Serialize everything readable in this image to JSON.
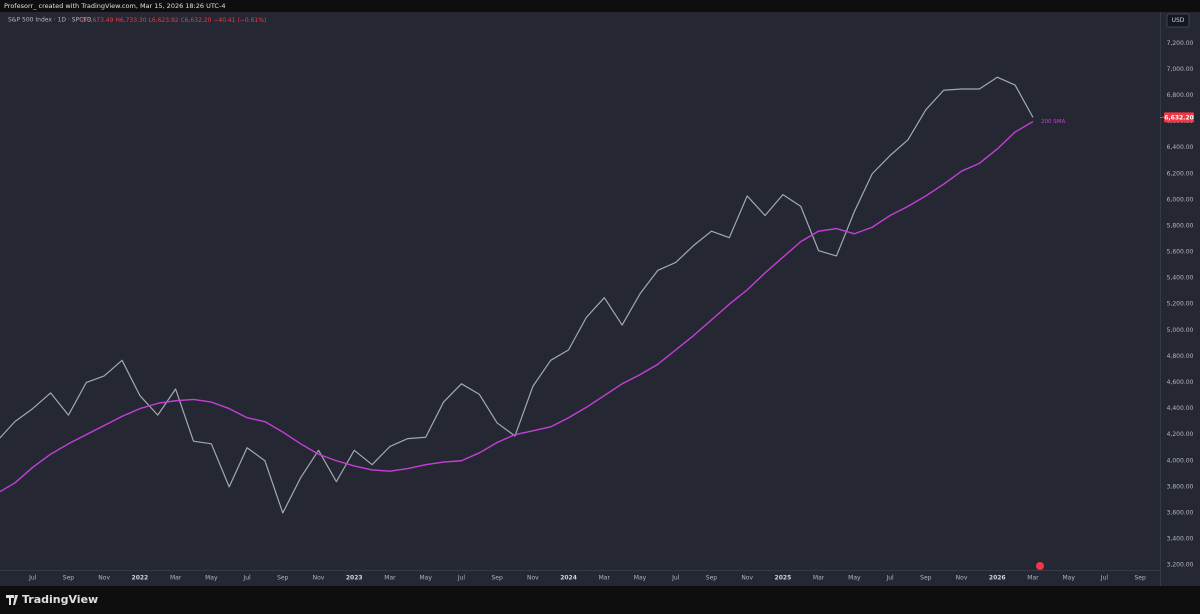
{
  "header": {
    "credit": "Profesorr_ created with TradingView.com, Mar 15, 2026 18:26 UTC-4",
    "logo": "TradingView"
  },
  "chart_data": {
    "type": "line",
    "ohlc": {
      "open": "O6,673.49",
      "high": "H6,733.30",
      "low": "L6,623.92",
      "close": "C6,632.20",
      "change": "−40.41 (−0.61%)"
    },
    "currency": "USD",
    "x": [
      "2021-05",
      "2021-06",
      "2021-07",
      "2021-08",
      "2021-09",
      "2021-10",
      "2021-11",
      "2021-12",
      "2022-01",
      "2022-02",
      "2022-03",
      "2022-04",
      "2022-05",
      "2022-06",
      "2022-07",
      "2022-08",
      "2022-09",
      "2022-10",
      "2022-11",
      "2022-12",
      "2023-01",
      "2023-02",
      "2023-03",
      "2023-04",
      "2023-05",
      "2023-06",
      "2023-07",
      "2023-08",
      "2023-09",
      "2023-10",
      "2023-11",
      "2023-12",
      "2024-01",
      "2024-02",
      "2024-03",
      "2024-04",
      "2024-05",
      "2024-06",
      "2024-07",
      "2024-08",
      "2024-09",
      "2024-10",
      "2024-11",
      "2024-12",
      "2025-01",
      "2025-02",
      "2025-03",
      "2025-04",
      "2025-05",
      "2025-06",
      "2025-07",
      "2025-08",
      "2025-09",
      "2025-10",
      "2025-11",
      "2025-12",
      "2026-01",
      "2026-02",
      "2026-03"
    ],
    "series": [
      {
        "name": "S&P 500 Index · 1D · SPCFD",
        "color": "#a3a8b4",
        "values": [
          4150,
          4300,
          4400,
          4520,
          4350,
          4600,
          4650,
          4770,
          4500,
          4350,
          4550,
          4150,
          4130,
          3800,
          4100,
          4000,
          3600,
          3870,
          4080,
          3840,
          4080,
          3970,
          4110,
          4170,
          4180,
          4450,
          4590,
          4510,
          4290,
          4190,
          4570,
          4770,
          4850,
          5100,
          5250,
          5040,
          5280,
          5460,
          5520,
          5650,
          5760,
          5710,
          6030,
          5880,
          6040,
          5950,
          5610,
          5570,
          5910,
          6200,
          6340,
          6460,
          6690,
          6840,
          6850,
          6850,
          6940,
          6880,
          6632.2
        ]
      },
      {
        "name": "200 SMA",
        "color": "#c43fd8",
        "values": [
          3750,
          3830,
          3950,
          4050,
          4130,
          4200,
          4270,
          4340,
          4400,
          4440,
          4460,
          4470,
          4450,
          4400,
          4330,
          4300,
          4220,
          4130,
          4050,
          4000,
          3960,
          3930,
          3920,
          3940,
          3970,
          3990,
          4000,
          4060,
          4140,
          4200,
          4230,
          4260,
          4330,
          4410,
          4500,
          4590,
          4660,
          4740,
          4850,
          4960,
          5080,
          5200,
          5310,
          5440,
          5560,
          5680,
          5760,
          5780,
          5740,
          5790,
          5880,
          5950,
          6030,
          6120,
          6220,
          6280,
          6390,
          6520,
          6600
        ]
      }
    ],
    "last_price": {
      "value": 6632.2,
      "label": "6,632.20",
      "color": "#f23645"
    },
    "xlim": [
      "2021-05",
      "2026-10"
    ],
    "xticks": [
      {
        "value": "2021-07",
        "label": "Jul"
      },
      {
        "value": "2021-09",
        "label": "Sep"
      },
      {
        "value": "2021-11",
        "label": "Nov"
      },
      {
        "value": "2022-01",
        "label": "2022"
      },
      {
        "value": "2022-03",
        "label": "Mar"
      },
      {
        "value": "2022-05",
        "label": "May"
      },
      {
        "value": "2022-07",
        "label": "Jul"
      },
      {
        "value": "2022-09",
        "label": "Sep"
      },
      {
        "value": "2022-11",
        "label": "Nov"
      },
      {
        "value": "2023-01",
        "label": "2023"
      },
      {
        "value": "2023-03",
        "label": "Mar"
      },
      {
        "value": "2023-05",
        "label": "May"
      },
      {
        "value": "2023-07",
        "label": "Jul"
      },
      {
        "value": "2023-09",
        "label": "Sep"
      },
      {
        "value": "2023-11",
        "label": "Nov"
      },
      {
        "value": "2024-01",
        "label": "2024"
      },
      {
        "value": "2024-03",
        "label": "Mar"
      },
      {
        "value": "2024-05",
        "label": "May"
      },
      {
        "value": "2024-07",
        "label": "Jul"
      },
      {
        "value": "2024-09",
        "label": "Sep"
      },
      {
        "value": "2024-11",
        "label": "Nov"
      },
      {
        "value": "2025-01",
        "label": "2025"
      },
      {
        "value": "2025-03",
        "label": "Mar"
      },
      {
        "value": "2025-05",
        "label": "May"
      },
      {
        "value": "2025-07",
        "label": "Jul"
      },
      {
        "value": "2025-09",
        "label": "Sep"
      },
      {
        "value": "2025-11",
        "label": "Nov"
      },
      {
        "value": "2026-01",
        "label": "2026"
      },
      {
        "value": "2026-03",
        "label": "Mar"
      },
      {
        "value": "2026-05",
        "label": "May"
      },
      {
        "value": "2026-07",
        "label": "Jul"
      },
      {
        "value": "2026-09",
        "label": "Sep"
      }
    ],
    "ylim": [
      3040,
      7440
    ],
    "yticks": [
      {
        "value": 3200,
        "label": "3,200.00"
      },
      {
        "value": 3400,
        "label": "3,400.00"
      },
      {
        "value": 3600,
        "label": "3,600.00"
      },
      {
        "value": 3800,
        "label": "3,800.00"
      },
      {
        "value": 4000,
        "label": "4,000.00"
      },
      {
        "value": 4200,
        "label": "4,200.00"
      },
      {
        "value": 4400,
        "label": "4,400.00"
      },
      {
        "value": 4600,
        "label": "4,600.00"
      },
      {
        "value": 4800,
        "label": "4,800.00"
      },
      {
        "value": 5000,
        "label": "5,000.00"
      },
      {
        "value": 5200,
        "label": "5,200.00"
      },
      {
        "value": 5400,
        "label": "5,400.00"
      },
      {
        "value": 5600,
        "label": "5,600.00"
      },
      {
        "value": 5800,
        "label": "5,800.00"
      },
      {
        "value": 6000,
        "label": "6,000.00"
      },
      {
        "value": 6200,
        "label": "6,200.00"
      },
      {
        "value": 6400,
        "label": "6,400.00"
      },
      {
        "value": 6600,
        "label": "6,600.00"
      },
      {
        "value": 6800,
        "label": "6,800.00"
      },
      {
        "value": 7000,
        "label": "7,000.00"
      },
      {
        "value": 7200,
        "label": "7,200.00"
      }
    ],
    "grid": false
  }
}
